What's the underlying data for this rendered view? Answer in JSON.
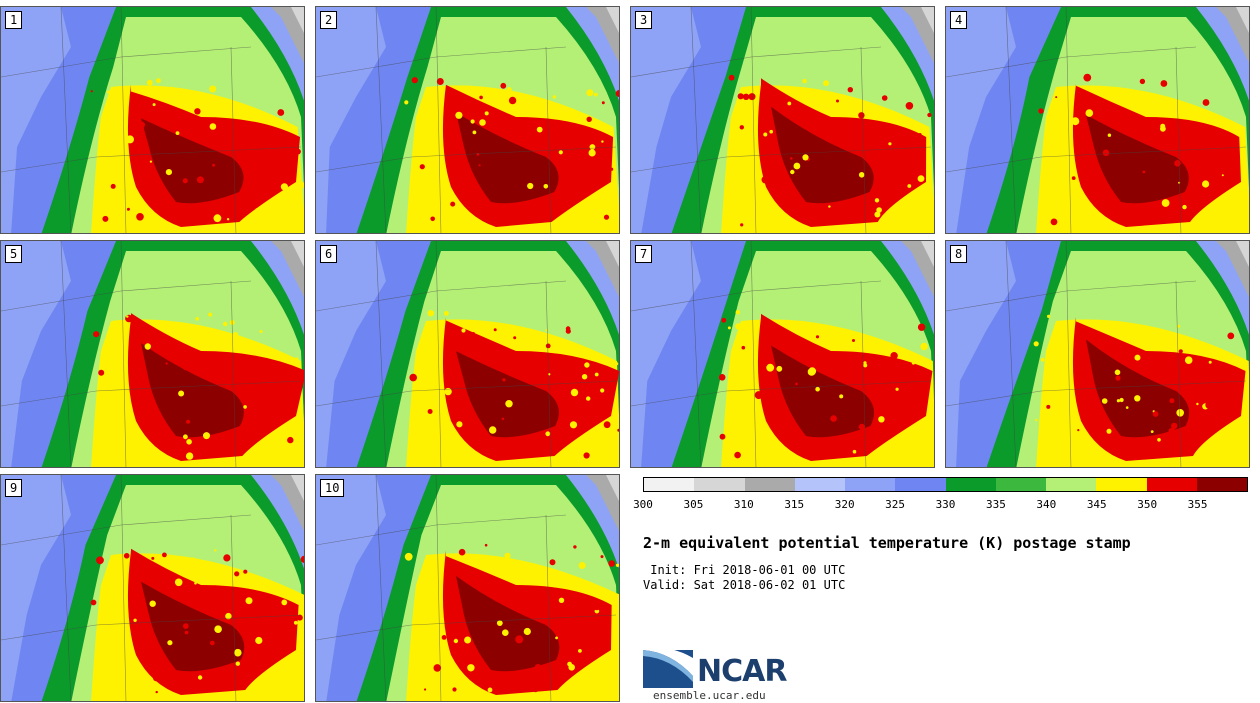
{
  "panels": [
    {
      "label": "1"
    },
    {
      "label": "2"
    },
    {
      "label": "3"
    },
    {
      "label": "4"
    },
    {
      "label": "5"
    },
    {
      "label": "6"
    },
    {
      "label": "7"
    },
    {
      "label": "8"
    },
    {
      "label": "9"
    },
    {
      "label": "10"
    }
  ],
  "colorbar": {
    "colors": [
      "#f2f2f2",
      "#d6d6d6",
      "#aaaaaa",
      "#b4c4fa",
      "#8ea2f6",
      "#6f86f2",
      "#0b9b2b",
      "#3db83f",
      "#b4f076",
      "#fff200",
      "#e60000",
      "#8c0000"
    ],
    "ticks": [
      "300",
      "305",
      "310",
      "315",
      "320",
      "325",
      "330",
      "335",
      "340",
      "345",
      "350",
      "355"
    ]
  },
  "title": "2-m equivalent potential temperature (K) postage stamp",
  "init": " Init: Fri 2018-06-01 00 UTC",
  "valid": "Valid: Sat 2018-06-02 01 UTC",
  "logo": {
    "name": "NCAR",
    "url": "ensemble.ucar.edu"
  }
}
